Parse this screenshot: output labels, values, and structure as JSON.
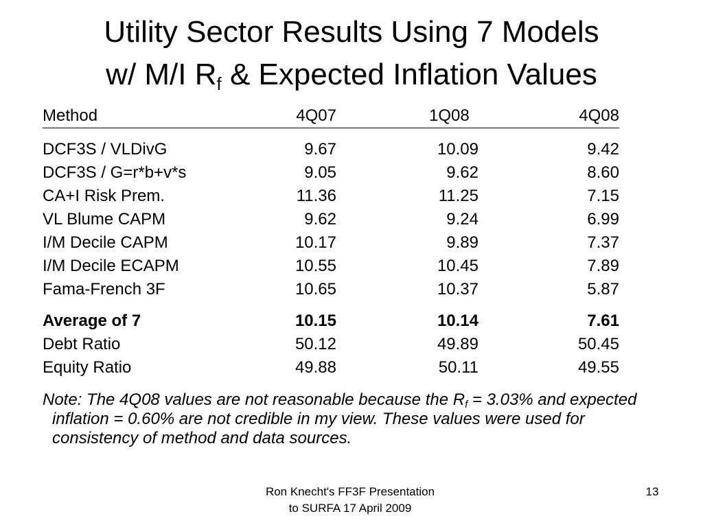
{
  "title": {
    "line1": "Utility Sector Results Using 7 Models",
    "line2_pre": "w/ M/I R",
    "line2_sub": "f",
    "line2_post": " & Expected Inflation Values"
  },
  "table": {
    "headers": [
      "Method",
      "4Q07",
      "1Q08",
      "4Q08"
    ],
    "group1": [
      [
        "DCF3S / VLDivG",
        "9.67",
        "10.09",
        "9.42"
      ],
      [
        "DCF3S / G=r*b+v*s",
        "9.05",
        "9.62",
        "8.60"
      ],
      [
        "CA+I Risk Prem.",
        "11.36",
        "11.25",
        "7.15"
      ],
      [
        "VL Blume CAPM",
        "9.62",
        "9.24",
        "6.99"
      ],
      [
        "I/M Decile CAPM",
        "10.17",
        "9.89",
        "7.37"
      ],
      [
        "I/M Decile ECAPM",
        "10.55",
        "10.45",
        "7.89"
      ],
      [
        "Fama-French 3F",
        "10.65",
        "10.37",
        "5.87"
      ]
    ],
    "group2": [
      [
        "Average of 7",
        "10.15",
        "10.14",
        "7.61"
      ],
      [
        "Debt Ratio",
        "50.12",
        "49.89",
        "50.45"
      ],
      [
        "Equity Ratio",
        "49.88",
        "50.11",
        "49.55"
      ]
    ]
  },
  "note": {
    "pre": "Note: The 4Q08 values are not reasonable because the R",
    "sub": "f",
    "post": " = 3.03% and expected inflation = 0.60% are not credible in my view.  These values were used for consistency of method and data sources."
  },
  "footer": {
    "line1": "Ron Knecht's FF3F Presentation",
    "line2": "to SURFA 17 April 2009",
    "page": "13"
  }
}
